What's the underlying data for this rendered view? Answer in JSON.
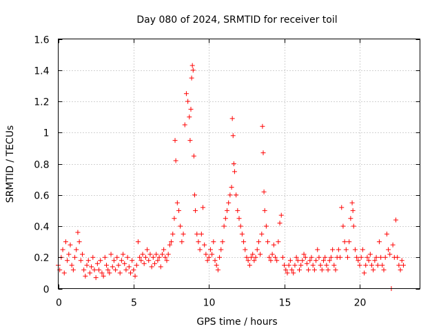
{
  "chart_data": {
    "type": "scatter",
    "title": "Day 080 of 2024, SRMTID for receiver toil",
    "xlabel": "GPS time / hours",
    "ylabel": "SRMTID / TECUs",
    "xlim": [
      0,
      24
    ],
    "ylim": [
      0,
      1.6
    ],
    "xticks": [
      0,
      5,
      10,
      15,
      20
    ],
    "xtick_labels": [
      "0",
      "5",
      "10",
      "15",
      "20"
    ],
    "yticks": [
      0,
      0.2,
      0.4,
      0.6,
      0.8,
      1.0,
      1.2,
      1.4,
      1.6
    ],
    "ytick_labels": [
      "0",
      "0.2",
      "0.4",
      "0.6",
      "0.8",
      "1",
      "1.2",
      "1.4",
      "1.6"
    ],
    "grid": true,
    "marker": "+",
    "color": "#ff0000",
    "series": [
      {
        "name": "SRMTID",
        "points": [
          [
            0.0,
            0.15
          ],
          [
            0.1,
            0.12
          ],
          [
            0.2,
            0.2
          ],
          [
            0.3,
            0.25
          ],
          [
            0.4,
            0.1
          ],
          [
            0.5,
            0.3
          ],
          [
            0.6,
            0.18
          ],
          [
            0.7,
            0.22
          ],
          [
            0.8,
            0.28
          ],
          [
            0.9,
            0.15
          ],
          [
            1.0,
            0.12
          ],
          [
            1.1,
            0.2
          ],
          [
            1.2,
            0.25
          ],
          [
            1.3,
            0.36
          ],
          [
            1.4,
            0.3
          ],
          [
            1.5,
            0.18
          ],
          [
            1.6,
            0.22
          ],
          [
            1.7,
            0.12
          ],
          [
            1.8,
            0.08
          ],
          [
            1.9,
            0.15
          ],
          [
            2.0,
            0.18
          ],
          [
            2.1,
            0.1
          ],
          [
            2.2,
            0.14
          ],
          [
            2.3,
            0.2
          ],
          [
            2.4,
            0.12
          ],
          [
            2.5,
            0.07
          ],
          [
            2.6,
            0.16
          ],
          [
            2.7,
            0.12
          ],
          [
            2.8,
            0.18
          ],
          [
            2.9,
            0.1
          ],
          [
            3.0,
            0.08
          ],
          [
            3.1,
            0.2
          ],
          [
            3.2,
            0.15
          ],
          [
            3.3,
            0.12
          ],
          [
            3.4,
            0.1
          ],
          [
            3.5,
            0.22
          ],
          [
            3.6,
            0.14
          ],
          [
            3.7,
            0.18
          ],
          [
            3.8,
            0.12
          ],
          [
            3.9,
            0.2
          ],
          [
            4.0,
            0.15
          ],
          [
            4.1,
            0.1
          ],
          [
            4.2,
            0.18
          ],
          [
            4.3,
            0.22
          ],
          [
            4.4,
            0.16
          ],
          [
            4.5,
            0.12
          ],
          [
            4.6,
            0.2
          ],
          [
            4.7,
            0.14
          ],
          [
            4.8,
            0.1
          ],
          [
            4.9,
            0.18
          ],
          [
            5.0,
            0.12
          ],
          [
            5.1,
            0.08
          ],
          [
            5.2,
            0.15
          ],
          [
            5.3,
            0.3
          ],
          [
            5.4,
            0.2
          ],
          [
            5.5,
            0.18
          ],
          [
            5.6,
            0.22
          ],
          [
            5.7,
            0.16
          ],
          [
            5.8,
            0.2
          ],
          [
            5.9,
            0.25
          ],
          [
            6.0,
            0.18
          ],
          [
            6.1,
            0.22
          ],
          [
            6.2,
            0.14
          ],
          [
            6.3,
            0.2
          ],
          [
            6.4,
            0.16
          ],
          [
            6.5,
            0.22
          ],
          [
            6.6,
            0.18
          ],
          [
            6.7,
            0.2
          ],
          [
            6.8,
            0.14
          ],
          [
            6.9,
            0.22
          ],
          [
            7.0,
            0.25
          ],
          [
            7.1,
            0.2
          ],
          [
            7.2,
            0.18
          ],
          [
            7.3,
            0.22
          ],
          [
            7.4,
            0.28
          ],
          [
            7.5,
            0.3
          ],
          [
            7.6,
            0.35
          ],
          [
            7.7,
            0.45
          ],
          [
            7.75,
            0.95
          ],
          [
            7.8,
            0.82
          ],
          [
            7.9,
            0.55
          ],
          [
            8.0,
            0.5
          ],
          [
            8.1,
            0.4
          ],
          [
            8.2,
            0.3
          ],
          [
            8.3,
            0.35
          ],
          [
            8.4,
            1.05
          ],
          [
            8.5,
            1.25
          ],
          [
            8.6,
            1.2
          ],
          [
            8.7,
            1.1
          ],
          [
            8.75,
            0.95
          ],
          [
            8.8,
            1.15
          ],
          [
            8.85,
            1.35
          ],
          [
            8.9,
            1.43
          ],
          [
            8.95,
            1.4
          ],
          [
            9.0,
            0.85
          ],
          [
            9.05,
            0.6
          ],
          [
            9.1,
            0.5
          ],
          [
            9.2,
            0.35
          ],
          [
            9.3,
            0.3
          ],
          [
            9.4,
            0.25
          ],
          [
            9.5,
            0.35
          ],
          [
            9.6,
            0.52
          ],
          [
            9.7,
            0.28
          ],
          [
            9.8,
            0.22
          ],
          [
            9.9,
            0.18
          ],
          [
            10.0,
            0.2
          ],
          [
            10.1,
            0.25
          ],
          [
            10.2,
            0.22
          ],
          [
            10.3,
            0.3
          ],
          [
            10.4,
            0.18
          ],
          [
            10.5,
            0.15
          ],
          [
            10.6,
            0.12
          ],
          [
            10.7,
            0.2
          ],
          [
            10.8,
            0.25
          ],
          [
            10.9,
            0.3
          ],
          [
            11.0,
            0.4
          ],
          [
            11.1,
            0.45
          ],
          [
            11.2,
            0.5
          ],
          [
            11.3,
            0.55
          ],
          [
            11.4,
            0.6
          ],
          [
            11.5,
            0.65
          ],
          [
            11.55,
            1.09
          ],
          [
            11.6,
            0.98
          ],
          [
            11.65,
            0.8
          ],
          [
            11.7,
            0.75
          ],
          [
            11.8,
            0.6
          ],
          [
            11.9,
            0.5
          ],
          [
            12.0,
            0.45
          ],
          [
            12.1,
            0.4
          ],
          [
            12.2,
            0.35
          ],
          [
            12.3,
            0.3
          ],
          [
            12.4,
            0.25
          ],
          [
            12.5,
            0.2
          ],
          [
            12.6,
            0.18
          ],
          [
            12.7,
            0.15
          ],
          [
            12.8,
            0.2
          ],
          [
            12.9,
            0.22
          ],
          [
            13.0,
            0.18
          ],
          [
            13.1,
            0.2
          ],
          [
            13.2,
            0.25
          ],
          [
            13.3,
            0.3
          ],
          [
            13.4,
            0.22
          ],
          [
            13.5,
            0.35
          ],
          [
            13.55,
            1.04
          ],
          [
            13.6,
            0.87
          ],
          [
            13.65,
            0.62
          ],
          [
            13.7,
            0.5
          ],
          [
            13.8,
            0.4
          ],
          [
            13.9,
            0.3
          ],
          [
            14.0,
            0.2
          ],
          [
            14.1,
            0.18
          ],
          [
            14.2,
            0.22
          ],
          [
            14.3,
            0.28
          ],
          [
            14.4,
            0.2
          ],
          [
            14.5,
            0.18
          ],
          [
            14.6,
            0.3
          ],
          [
            14.7,
            0.42
          ],
          [
            14.8,
            0.47
          ],
          [
            14.9,
            0.2
          ],
          [
            15.0,
            0.15
          ],
          [
            15.1,
            0.12
          ],
          [
            15.2,
            0.1
          ],
          [
            15.3,
            0.15
          ],
          [
            15.4,
            0.18
          ],
          [
            15.5,
            0.12
          ],
          [
            15.6,
            0.1
          ],
          [
            15.7,
            0.15
          ],
          [
            15.8,
            0.2
          ],
          [
            15.9,
            0.18
          ],
          [
            16.0,
            0.12
          ],
          [
            16.1,
            0.15
          ],
          [
            16.2,
            0.18
          ],
          [
            16.3,
            0.22
          ],
          [
            16.4,
            0.2
          ],
          [
            16.5,
            0.16
          ],
          [
            16.6,
            0.12
          ],
          [
            16.7,
            0.18
          ],
          [
            16.8,
            0.2
          ],
          [
            16.9,
            0.15
          ],
          [
            17.0,
            0.12
          ],
          [
            17.1,
            0.18
          ],
          [
            17.2,
            0.25
          ],
          [
            17.3,
            0.2
          ],
          [
            17.4,
            0.15
          ],
          [
            17.5,
            0.12
          ],
          [
            17.6,
            0.18
          ],
          [
            17.7,
            0.2
          ],
          [
            17.8,
            0.15
          ],
          [
            17.9,
            0.12
          ],
          [
            18.0,
            0.18
          ],
          [
            18.1,
            0.2
          ],
          [
            18.2,
            0.25
          ],
          [
            18.3,
            0.15
          ],
          [
            18.4,
            0.12
          ],
          [
            18.5,
            0.2
          ],
          [
            18.6,
            0.25
          ],
          [
            18.7,
            0.2
          ],
          [
            18.8,
            0.52
          ],
          [
            18.9,
            0.4
          ],
          [
            19.0,
            0.3
          ],
          [
            19.1,
            0.25
          ],
          [
            19.2,
            0.2
          ],
          [
            19.3,
            0.3
          ],
          [
            19.4,
            0.45
          ],
          [
            19.5,
            0.55
          ],
          [
            19.55,
            0.5
          ],
          [
            19.6,
            0.4
          ],
          [
            19.7,
            0.25
          ],
          [
            19.8,
            0.2
          ],
          [
            19.9,
            0.18
          ],
          [
            20.0,
            0.15
          ],
          [
            20.1,
            0.2
          ],
          [
            20.2,
            0.25
          ],
          [
            20.3,
            0.1
          ],
          [
            20.4,
            0.15
          ],
          [
            20.5,
            0.2
          ],
          [
            20.6,
            0.18
          ],
          [
            20.7,
            0.22
          ],
          [
            20.8,
            0.15
          ],
          [
            20.9,
            0.12
          ],
          [
            21.0,
            0.18
          ],
          [
            21.1,
            0.2
          ],
          [
            21.2,
            0.15
          ],
          [
            21.3,
            0.3
          ],
          [
            21.4,
            0.2
          ],
          [
            21.5,
            0.15
          ],
          [
            21.6,
            0.12
          ],
          [
            21.7,
            0.2
          ],
          [
            21.8,
            0.35
          ],
          [
            21.9,
            0.25
          ],
          [
            22.0,
            0.22
          ],
          [
            22.1,
            0.0
          ],
          [
            22.2,
            0.28
          ],
          [
            22.3,
            0.2
          ],
          [
            22.4,
            0.44
          ],
          [
            22.5,
            0.2
          ],
          [
            22.6,
            0.15
          ],
          [
            22.7,
            0.12
          ],
          [
            22.8,
            0.18
          ],
          [
            22.9,
            0.15
          ]
        ]
      }
    ]
  }
}
